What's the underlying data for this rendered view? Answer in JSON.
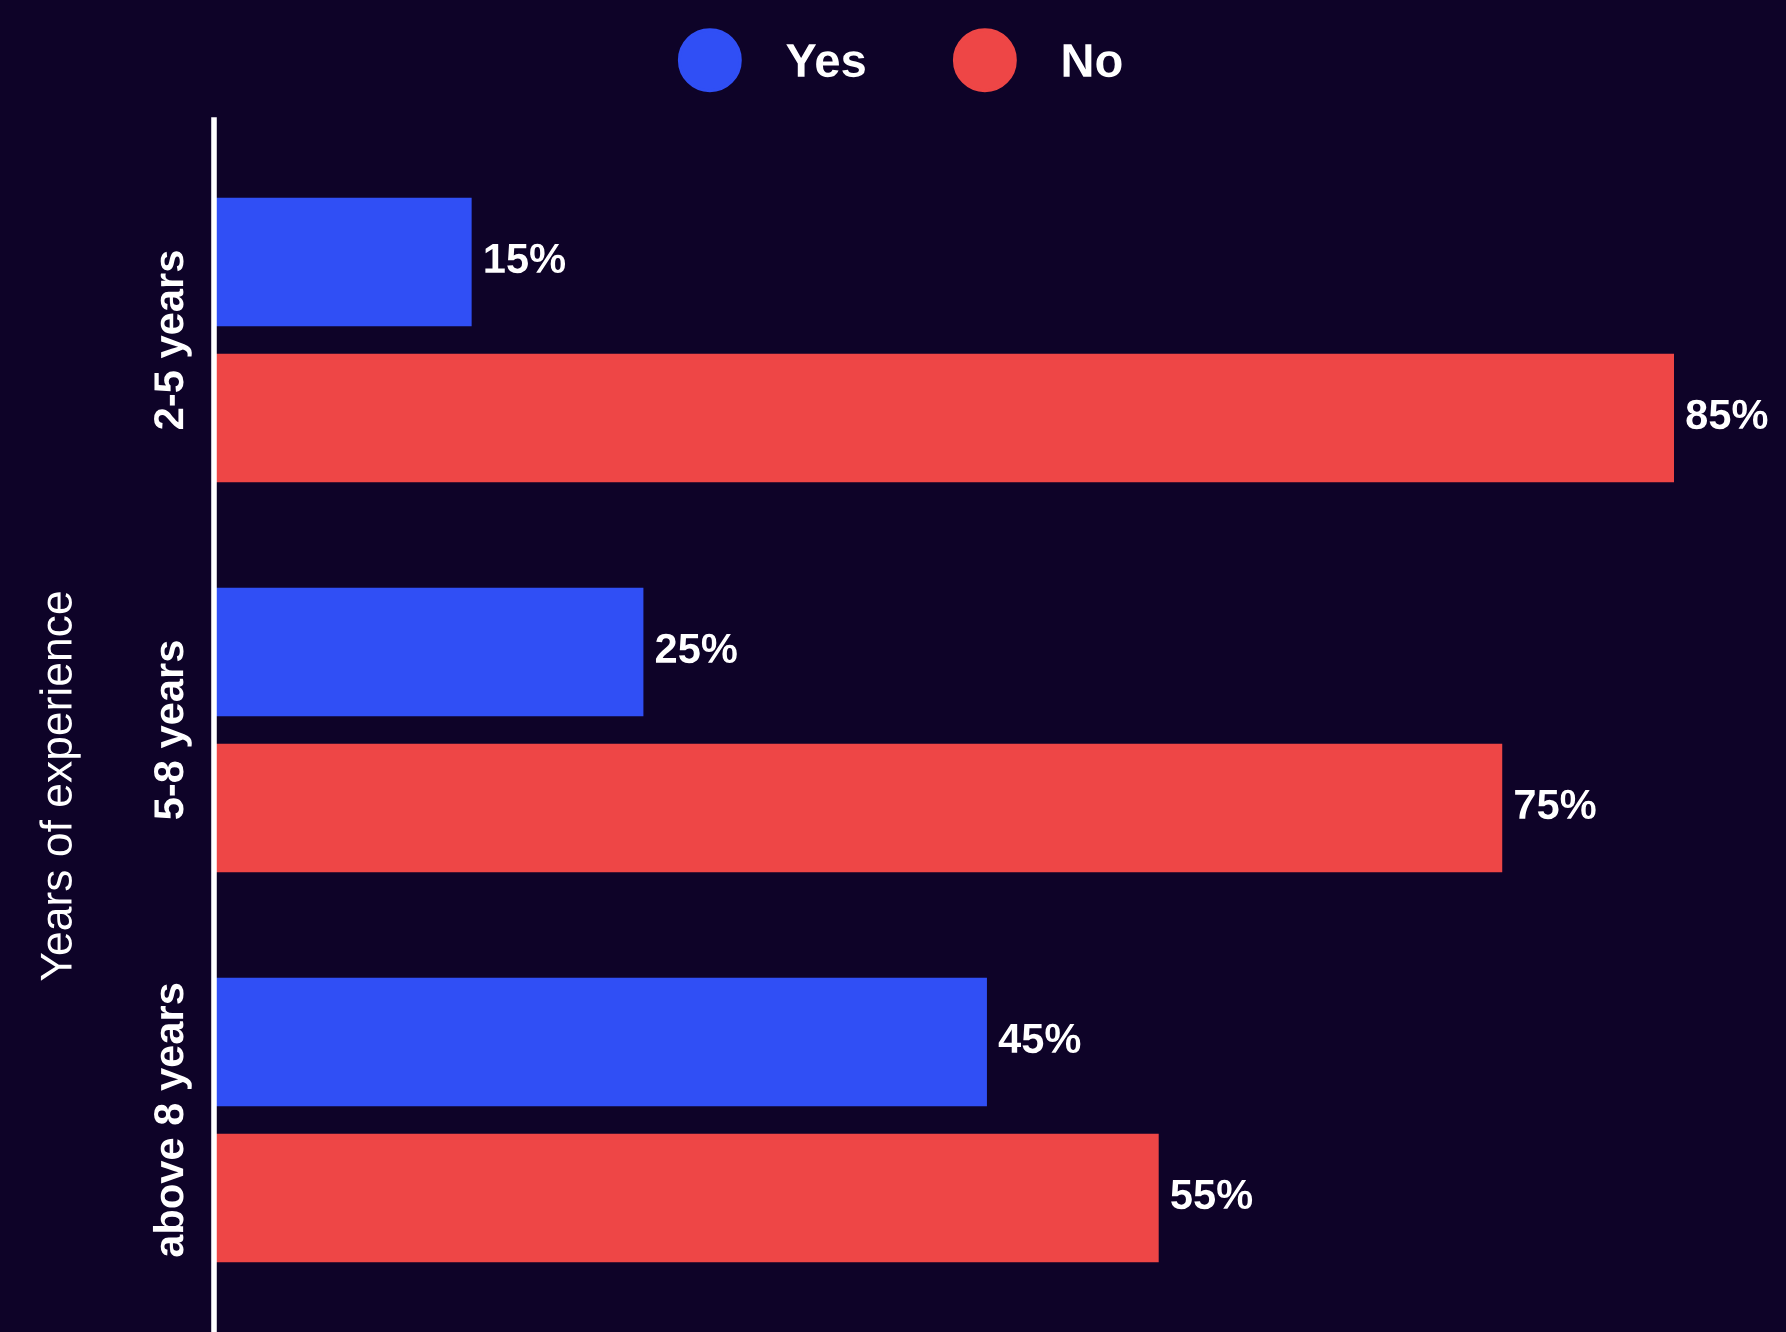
{
  "chart_data": {
    "type": "bar",
    "orientation": "horizontal",
    "ylabel": "Years of experience",
    "categories": [
      "2-5 years",
      "5-8 years",
      "above 8 years"
    ],
    "series": [
      {
        "name": "Yes",
        "color": "#304ff5",
        "values": [
          15,
          25,
          45
        ],
        "value_labels": [
          "15%",
          "25%",
          "45%"
        ]
      },
      {
        "name": "No",
        "color": "#ee4646",
        "values": [
          85,
          75,
          55
        ],
        "value_labels": [
          "85%",
          "75%",
          "55%"
        ]
      }
    ],
    "legend": "top",
    "grid": false,
    "tick_labels": "y"
  }
}
